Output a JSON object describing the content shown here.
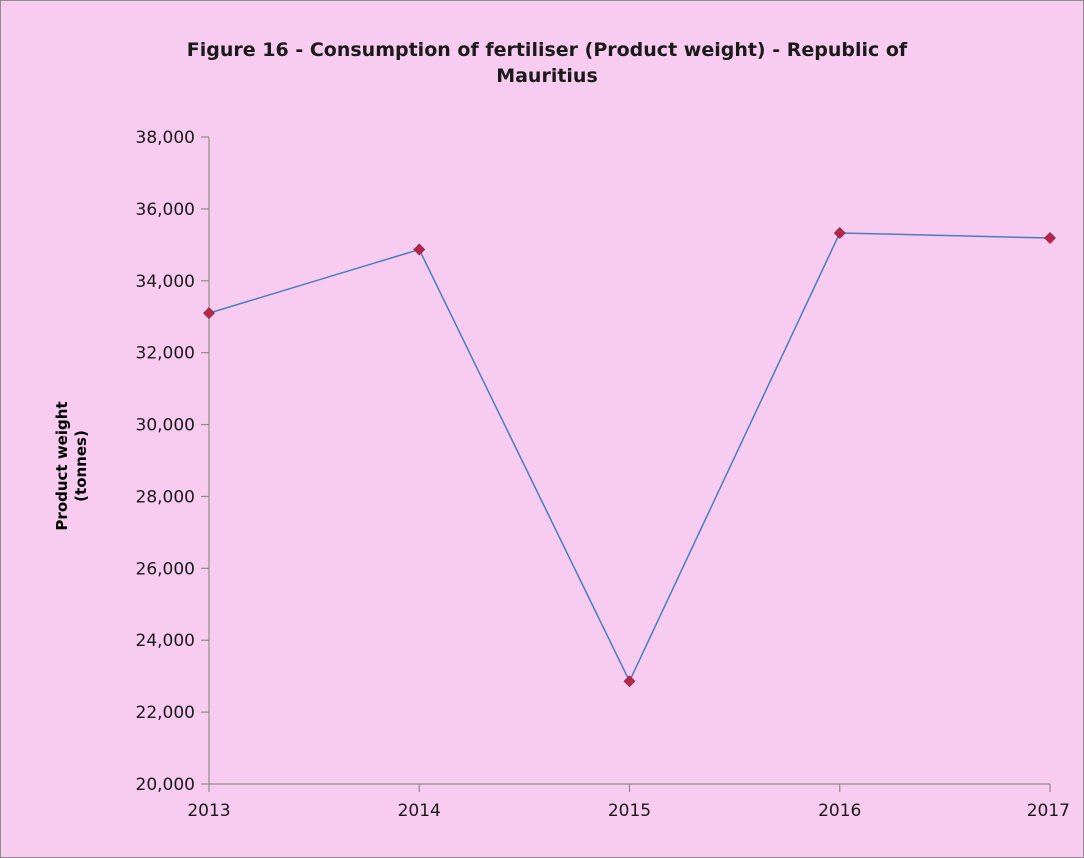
{
  "chart_data": {
    "type": "line",
    "title": "Figure  16  - Consumption of fertiliser (Product weight) - Republic of",
    "title_line2": "Mauritius",
    "xlabel": "",
    "ylabel": "Product weight",
    "ylabel_line2": "(tonnes)",
    "categories": [
      "2013",
      "2014",
      "2015",
      "2016",
      "2017"
    ],
    "series": [
      {
        "values": [
          33100,
          34870,
          22860,
          35330,
          35190
        ],
        "color": "#4a7ebb",
        "marker_color": "#b5274a"
      }
    ],
    "ylim": [
      20000,
      38000
    ],
    "yticks": [
      20000,
      22000,
      24000,
      26000,
      28000,
      30000,
      32000,
      34000,
      36000,
      38000
    ],
    "ytick_labels": [
      "20,000",
      "22,000",
      "24,000",
      "26,000",
      "28,000",
      "30,000",
      "32,000",
      "34,000",
      "36,000",
      "38,000"
    ],
    "grid": false,
    "background": "#f8ccf0"
  }
}
